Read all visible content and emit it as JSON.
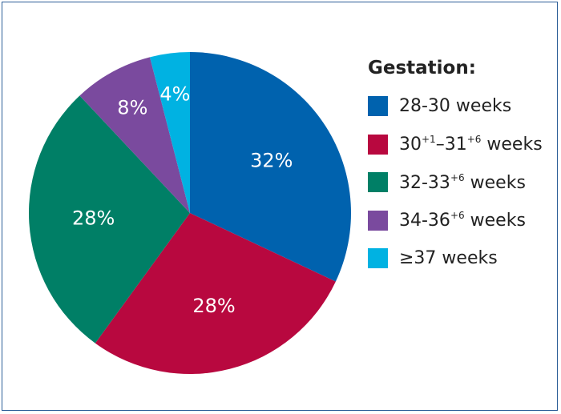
{
  "chart_data": {
    "type": "pie",
    "legend_title": "Gestation:",
    "legend_placement": "right",
    "categories": [
      "28-30 weeks",
      "30+1-31+6 weeks",
      "32-33+6 weeks",
      "34-36+6 weeks",
      "≥37 weeks"
    ],
    "values": [
      32,
      28,
      28,
      8,
      4
    ],
    "value_labels": [
      "32%",
      "28%",
      "28%",
      "8%",
      "4%"
    ],
    "colors": [
      "#0062ae",
      "#b8083f",
      "#007f66",
      "#7a4a9e",
      "#00b2e2"
    ],
    "legend_entries": [
      {
        "parts": [
          {
            "t": "28-30 weeks"
          }
        ]
      },
      {
        "parts": [
          {
            "t": "30"
          },
          {
            "t": "+1",
            "sup": true
          },
          {
            "t": "–31"
          },
          {
            "t": "+6",
            "sup": true
          },
          {
            "t": " weeks"
          }
        ]
      },
      {
        "parts": [
          {
            "t": "32-33"
          },
          {
            "t": "+6",
            "sup": true
          },
          {
            "t": " weeks"
          }
        ]
      },
      {
        "parts": [
          {
            "t": "34-36"
          },
          {
            "t": "+6",
            "sup": true
          },
          {
            "t": " weeks"
          }
        ]
      },
      {
        "parts": [
          {
            "t": "≥37 weeks"
          }
        ]
      }
    ]
  }
}
